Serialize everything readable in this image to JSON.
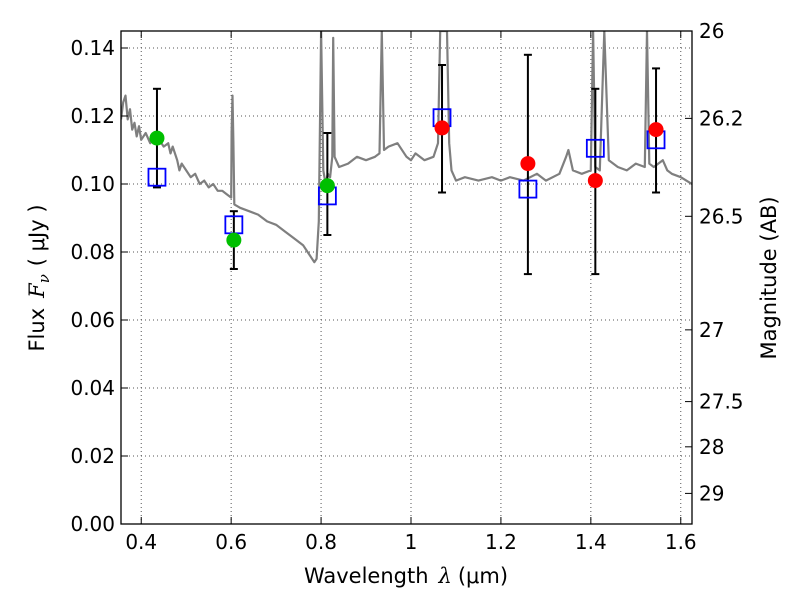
{
  "chart_data": {
    "type": "scatter",
    "xlabel_text": "Wavelength",
    "xlabel_symbol": "λ",
    "xlabel_unit": "(μm)",
    "ylabel_text": "Flux",
    "ylabel_symbol": "F",
    "ylabel_subscript": "ν",
    "ylabel_unit": "( μJy )",
    "y2label": "Magnitude (AB)",
    "xlim": [
      0.355,
      1.625
    ],
    "ylim": [
      0.0,
      0.145
    ],
    "xticks": [
      0.4,
      0.6,
      0.8,
      1.0,
      1.2,
      1.4,
      1.6
    ],
    "xtick_labels": [
      "0.4",
      "0.6",
      "0.8",
      "1",
      "1.2",
      "1.4",
      "1.6"
    ],
    "yticks": [
      0.0,
      0.02,
      0.04,
      0.06,
      0.08,
      0.1,
      0.12,
      0.14
    ],
    "ytick_labels": [
      "0.00",
      "0.02",
      "0.04",
      "0.06",
      "0.08",
      "0.10",
      "0.12",
      "0.14"
    ],
    "y2ticks": [
      {
        "label": "26",
        "flux": 0.145
      },
      {
        "label": "26.2",
        "flux": 0.1193
      },
      {
        "label": "26.5",
        "flux": 0.0905
      },
      {
        "label": "27",
        "flux": 0.0571
      },
      {
        "label": "27.5",
        "flux": 0.036
      },
      {
        "label": "28",
        "flux": 0.0227
      },
      {
        "label": "29",
        "flux": 0.009
      }
    ],
    "grid": true,
    "colors": {
      "model": "#7f7f7f",
      "observed_optical": "#00bf00",
      "observed_nir": "#ff0000",
      "model_photometry": "#0000ff",
      "errorbar": "#000000",
      "grid": "#555555"
    },
    "series": [
      {
        "kind": "line",
        "points": [
          [
            0.355,
            0.119
          ],
          [
            0.36,
            0.124
          ],
          [
            0.365,
            0.126
          ],
          [
            0.37,
            0.119
          ],
          [
            0.375,
            0.122
          ],
          [
            0.38,
            0.116
          ],
          [
            0.385,
            0.118
          ],
          [
            0.39,
            0.114
          ],
          [
            0.395,
            0.117
          ],
          [
            0.4,
            0.113
          ],
          [
            0.41,
            0.115
          ],
          [
            0.42,
            0.112
          ],
          [
            0.43,
            0.114
          ],
          [
            0.44,
            0.113
          ],
          [
            0.45,
            0.111
          ],
          [
            0.46,
            0.112
          ],
          [
            0.465,
            0.109
          ],
          [
            0.47,
            0.111
          ],
          [
            0.48,
            0.107
          ],
          [
            0.485,
            0.104
          ],
          [
            0.49,
            0.106
          ],
          [
            0.5,
            0.104
          ],
          [
            0.51,
            0.102
          ],
          [
            0.52,
            0.103
          ],
          [
            0.53,
            0.1
          ],
          [
            0.54,
            0.101
          ],
          [
            0.55,
            0.099
          ],
          [
            0.56,
            0.1
          ],
          [
            0.57,
            0.098
          ],
          [
            0.58,
            0.098
          ],
          [
            0.59,
            0.097
          ],
          [
            0.6,
            0.096
          ],
          [
            0.601,
            0.115
          ],
          [
            0.603,
            0.126
          ],
          [
            0.605,
            0.112
          ],
          [
            0.607,
            0.094
          ],
          [
            0.62,
            0.093
          ],
          [
            0.64,
            0.092
          ],
          [
            0.66,
            0.091
          ],
          [
            0.68,
            0.089
          ],
          [
            0.7,
            0.088
          ],
          [
            0.72,
            0.086
          ],
          [
            0.74,
            0.084
          ],
          [
            0.76,
            0.082
          ],
          [
            0.77,
            0.08
          ],
          [
            0.78,
            0.078
          ],
          [
            0.785,
            0.077
          ],
          [
            0.79,
            0.078
          ],
          [
            0.795,
            0.089
          ],
          [
            0.8,
            0.145
          ],
          [
            0.805,
            0.104
          ],
          [
            0.81,
            0.1
          ],
          [
            0.815,
            0.103
          ],
          [
            0.82,
            0.102
          ],
          [
            0.825,
            0.108
          ],
          [
            0.827,
            0.143
          ],
          [
            0.83,
            0.108
          ],
          [
            0.84,
            0.105
          ],
          [
            0.86,
            0.106
          ],
          [
            0.88,
            0.108
          ],
          [
            0.9,
            0.107
          ],
          [
            0.92,
            0.108
          ],
          [
            0.93,
            0.109
          ],
          [
            0.935,
            0.145
          ],
          [
            0.94,
            0.11
          ],
          [
            0.95,
            0.111
          ],
          [
            0.97,
            0.112
          ],
          [
            0.99,
            0.108
          ],
          [
            1.0,
            0.107
          ],
          [
            1.01,
            0.109
          ],
          [
            1.03,
            0.107
          ],
          [
            1.05,
            0.108
          ],
          [
            1.06,
            0.112
          ],
          [
            1.065,
            0.145
          ],
          [
            1.08,
            0.145
          ],
          [
            1.085,
            0.112
          ],
          [
            1.09,
            0.104
          ],
          [
            1.1,
            0.101
          ],
          [
            1.12,
            0.102
          ],
          [
            1.15,
            0.101
          ],
          [
            1.18,
            0.102
          ],
          [
            1.2,
            0.101
          ],
          [
            1.22,
            0.102
          ],
          [
            1.25,
            0.101
          ],
          [
            1.28,
            0.103
          ],
          [
            1.3,
            0.101
          ],
          [
            1.33,
            0.103
          ],
          [
            1.345,
            0.108
          ],
          [
            1.35,
            0.11
          ],
          [
            1.36,
            0.104
          ],
          [
            1.38,
            0.103
          ],
          [
            1.4,
            0.104
          ],
          [
            1.405,
            0.145
          ],
          [
            1.41,
            0.105
          ],
          [
            1.42,
            0.104
          ],
          [
            1.43,
            0.145
          ],
          [
            1.44,
            0.107
          ],
          [
            1.46,
            0.105
          ],
          [
            1.48,
            0.104
          ],
          [
            1.5,
            0.106
          ],
          [
            1.52,
            0.105
          ],
          [
            1.525,
            0.145
          ],
          [
            1.53,
            0.106
          ],
          [
            1.54,
            0.105
          ],
          [
            1.55,
            0.106
          ],
          [
            1.56,
            0.107
          ],
          [
            1.57,
            0.104
          ],
          [
            1.58,
            0.103
          ],
          [
            1.6,
            0.102
          ],
          [
            1.625,
            0.1
          ]
        ]
      },
      {
        "kind": "errorbar",
        "points": [
          {
            "x": 0.435,
            "y": 0.1135,
            "ylo": 0.099,
            "yhi": 0.128
          },
          {
            "x": 0.606,
            "y": 0.0835,
            "ylo": 0.075,
            "yhi": 0.092
          },
          {
            "x": 0.814,
            "y": 0.0995,
            "ylo": 0.085,
            "yhi": 0.115
          },
          {
            "x": 1.069,
            "y": 0.1165,
            "ylo": 0.0975,
            "yhi": 0.135
          },
          {
            "x": 1.26,
            "y": 0.106,
            "ylo": 0.0735,
            "yhi": 0.138
          },
          {
            "x": 1.41,
            "y": 0.101,
            "ylo": 0.0735,
            "yhi": 0.128
          },
          {
            "x": 1.545,
            "y": 0.116,
            "ylo": 0.0975,
            "yhi": 0.134
          }
        ]
      },
      {
        "kind": "model_photometry",
        "points": [
          [
            0.435,
            0.102
          ],
          [
            0.606,
            0.088
          ],
          [
            0.814,
            0.0965
          ],
          [
            1.069,
            0.1195
          ],
          [
            1.26,
            0.0985
          ],
          [
            1.41,
            0.1105
          ],
          [
            1.545,
            0.113
          ]
        ]
      },
      {
        "kind": "observed_optical",
        "points": [
          [
            0.435,
            0.1135
          ],
          [
            0.606,
            0.0835
          ],
          [
            0.814,
            0.0995
          ]
        ]
      },
      {
        "kind": "observed_nir",
        "points": [
          [
            1.069,
            0.1165
          ],
          [
            1.26,
            0.106
          ],
          [
            1.41,
            0.101
          ],
          [
            1.545,
            0.116
          ]
        ]
      }
    ]
  }
}
